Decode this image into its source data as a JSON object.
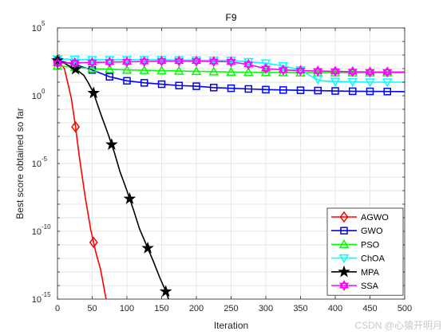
{
  "chart_data": {
    "type": "line",
    "title": "F9",
    "xlabel": "Iteration",
    "ylabel": "Best score obtained so far",
    "xlim": [
      0,
      500
    ],
    "ylim_log10": [
      -15,
      5
    ],
    "yscale": "log",
    "grid": true,
    "legend_position": "bottom-right",
    "x_ticks": [
      "0",
      "50",
      "100",
      "150",
      "200",
      "250",
      "300",
      "350",
      "400",
      "450",
      "500"
    ],
    "y_ticks": [
      {
        "exp": "5",
        "pow": 5
      },
      {
        "exp": "0",
        "pow": 0
      },
      {
        "exp": "-5",
        "pow": -5
      },
      {
        "exp": "-10",
        "pow": -10
      },
      {
        "exp": "-15",
        "pow": -15
      }
    ],
    "series": [
      {
        "name": "AGWO",
        "color": "#ff0000",
        "marker": "diamond",
        "points": [
          [
            0,
            2.6
          ],
          [
            10,
            2.0
          ],
          [
            20,
            -0.2
          ],
          [
            26,
            -2.3
          ],
          [
            32,
            -4.7
          ],
          [
            40,
            -7.5
          ],
          [
            48,
            -9.9
          ],
          [
            55,
            -11.5
          ],
          [
            62,
            -12.8
          ],
          [
            70,
            -15.0
          ]
        ],
        "marker_x": [
          0,
          26,
          52
        ]
      },
      {
        "name": "GWO",
        "color": "#0000ff",
        "marker": "square",
        "points": [
          [
            0,
            2.6
          ],
          [
            25,
            2.3
          ],
          [
            50,
            1.9
          ],
          [
            75,
            1.4
          ],
          [
            100,
            1.1
          ],
          [
            125,
            0.95
          ],
          [
            150,
            0.85
          ],
          [
            175,
            0.75
          ],
          [
            200,
            0.7
          ],
          [
            225,
            0.6
          ],
          [
            250,
            0.55
          ],
          [
            275,
            0.5
          ],
          [
            300,
            0.45
          ],
          [
            325,
            0.42
          ],
          [
            350,
            0.4
          ],
          [
            375,
            0.38
          ],
          [
            400,
            0.35
          ],
          [
            425,
            0.33
          ],
          [
            450,
            0.32
          ],
          [
            475,
            0.31
          ],
          [
            500,
            0.3
          ]
        ],
        "marker_x": [
          0,
          25,
          50,
          75,
          100,
          125,
          150,
          175,
          200,
          225,
          250,
          275,
          300,
          325,
          350,
          375,
          400,
          425,
          450,
          475
        ]
      },
      {
        "name": "PSO",
        "color": "#00ff00",
        "marker": "triangle-up",
        "points": [
          [
            0,
            2.2
          ],
          [
            25,
            2.1
          ],
          [
            50,
            2.0
          ],
          [
            100,
            1.9
          ],
          [
            150,
            1.85
          ],
          [
            200,
            1.8
          ],
          [
            250,
            1.75
          ],
          [
            300,
            1.72
          ],
          [
            350,
            1.7
          ],
          [
            400,
            1.7
          ],
          [
            450,
            1.7
          ],
          [
            500,
            1.7
          ]
        ],
        "marker_x": [
          0,
          25,
          50,
          75,
          100,
          125,
          150,
          175,
          200,
          225,
          250,
          275,
          300,
          325,
          350,
          375,
          400,
          425,
          450,
          475
        ]
      },
      {
        "name": "ChOA",
        "color": "#00ffff",
        "marker": "triangle-down",
        "points": [
          [
            0,
            2.7
          ],
          [
            50,
            2.65
          ],
          [
            100,
            2.65
          ],
          [
            150,
            2.65
          ],
          [
            200,
            2.62
          ],
          [
            250,
            2.6
          ],
          [
            275,
            2.5
          ],
          [
            300,
            2.4
          ],
          [
            325,
            2.2
          ],
          [
            350,
            1.9
          ],
          [
            370,
            1.3
          ],
          [
            380,
            1.1
          ],
          [
            400,
            1.05
          ],
          [
            450,
            1.0
          ],
          [
            500,
            1.0
          ]
        ],
        "marker_x": [
          0,
          25,
          50,
          75,
          100,
          125,
          150,
          175,
          200,
          225,
          250,
          275,
          300,
          325,
          350,
          375,
          400,
          425,
          450,
          475
        ]
      },
      {
        "name": "MPA",
        "color": "#000000",
        "marker": "star",
        "points": [
          [
            0,
            2.6
          ],
          [
            10,
            2.4
          ],
          [
            20,
            2.1
          ],
          [
            28,
            1.9
          ],
          [
            38,
            1.5
          ],
          [
            45,
            0.9
          ],
          [
            52,
            0.2
          ],
          [
            62,
            -1.3
          ],
          [
            72,
            -2.7
          ],
          [
            82,
            -4.2
          ],
          [
            90,
            -5.6
          ],
          [
            100,
            -7.0
          ],
          [
            110,
            -8.5
          ],
          [
            118,
            -9.8
          ],
          [
            128,
            -11.0
          ],
          [
            138,
            -12.2
          ],
          [
            148,
            -13.5
          ],
          [
            155,
            -14.3
          ],
          [
            160,
            -15.0
          ]
        ],
        "marker_x": [
          0,
          26,
          52,
          78,
          104,
          130,
          156
        ]
      },
      {
        "name": "SSA",
        "color": "#ff00ff",
        "marker": "hexagram",
        "points": [
          [
            0,
            2.4
          ],
          [
            50,
            2.45
          ],
          [
            100,
            2.5
          ],
          [
            150,
            2.55
          ],
          [
            200,
            2.55
          ],
          [
            250,
            2.5
          ],
          [
            275,
            2.3
          ],
          [
            300,
            2.0
          ],
          [
            325,
            1.9
          ],
          [
            350,
            1.85
          ],
          [
            400,
            1.8
          ],
          [
            450,
            1.75
          ],
          [
            500,
            1.75
          ]
        ],
        "marker_x": [
          0,
          25,
          50,
          75,
          100,
          125,
          150,
          175,
          200,
          225,
          250,
          275,
          300,
          325,
          350,
          375,
          400,
          425,
          450,
          475
        ]
      }
    ]
  },
  "watermark": "CSDN @心猿开明月"
}
